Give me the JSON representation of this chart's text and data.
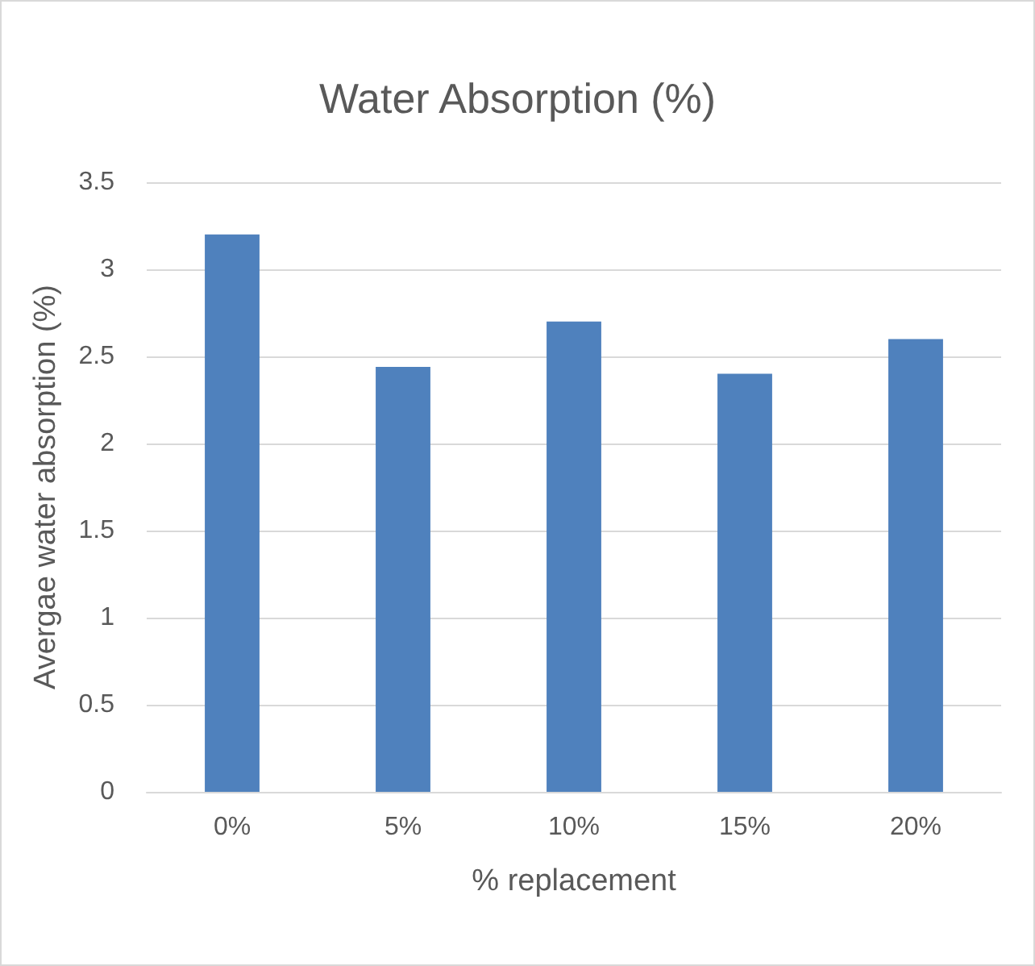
{
  "chart_data": {
    "type": "bar",
    "title": "Water Absorption (%)",
    "xlabel": "% replacement",
    "ylabel": "Avergae water absorption (%)",
    "categories": [
      "0%",
      "5%",
      "10%",
      "15%",
      "20%"
    ],
    "values": [
      3.2,
      2.44,
      2.7,
      2.4,
      2.6
    ],
    "color": "#4f81bd",
    "ylim": [
      0,
      3.5
    ],
    "yticks": [
      0,
      0.5,
      1,
      1.5,
      2,
      2.5,
      3,
      3.5
    ],
    "grid": "y"
  }
}
